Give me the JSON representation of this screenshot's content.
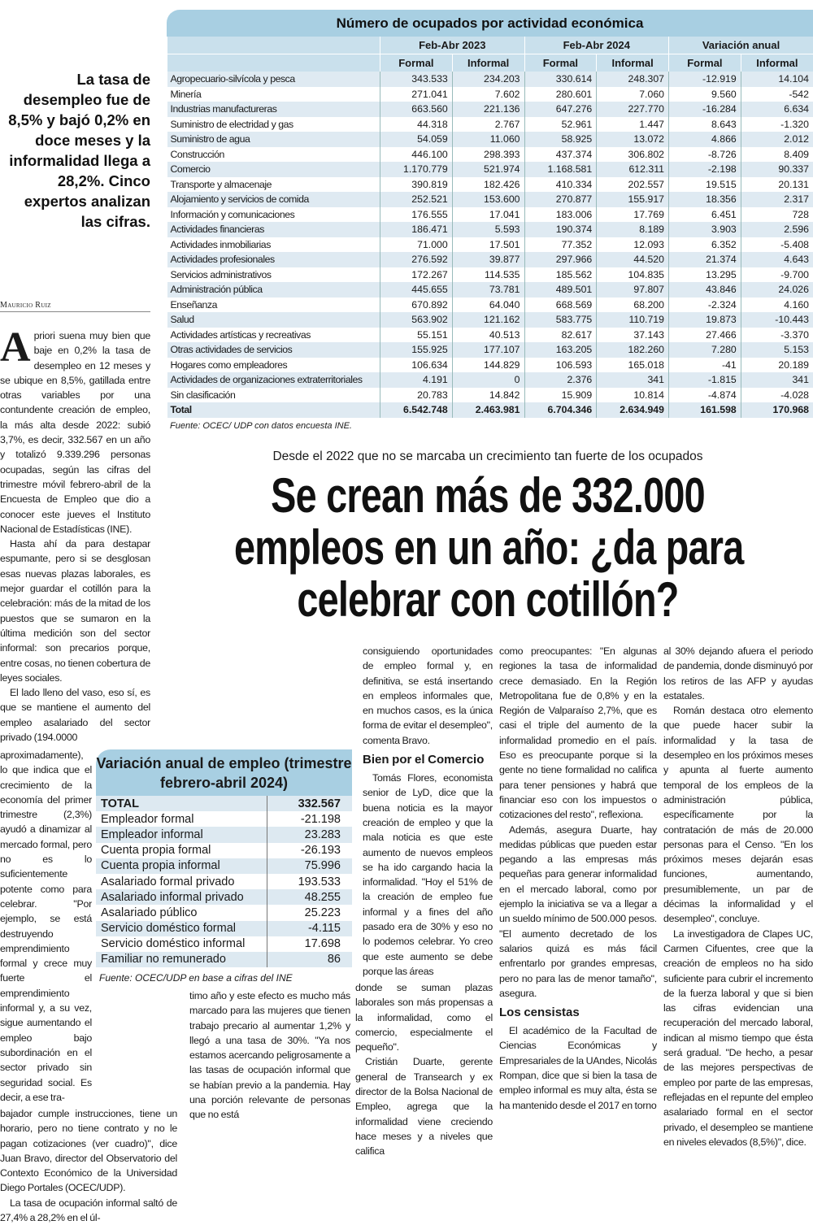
{
  "table1": {
    "title": "Número de ocupados por actividad económica",
    "groups": [
      "Feb-Abr 2023",
      "Feb-Abr 2024",
      "Variación anual"
    ],
    "subheaders": [
      "Formal",
      "Informal",
      "Formal",
      "Informal",
      "Formal",
      "Informal"
    ],
    "rows": [
      [
        "Agropecuario-silvícola y pesca",
        "343.533",
        "234.203",
        "330.614",
        "248.307",
        "-12.919",
        "14.104"
      ],
      [
        "Minería",
        "271.041",
        "7.602",
        "280.601",
        "7.060",
        "9.560",
        "-542"
      ],
      [
        "Industrias manufactureras",
        "663.560",
        "221.136",
        "647.276",
        "227.770",
        "-16.284",
        "6.634"
      ],
      [
        "Suministro de electridad y gas",
        "44.318",
        "2.767",
        "52.961",
        "1.447",
        "8.643",
        "-1.320"
      ],
      [
        "Suministro de agua",
        "54.059",
        "11.060",
        "58.925",
        "13.072",
        "4.866",
        "2.012"
      ],
      [
        "Construcción",
        "446.100",
        "298.393",
        "437.374",
        "306.802",
        "-8.726",
        "8.409"
      ],
      [
        "Comercio",
        "1.170.779",
        "521.974",
        "1.168.581",
        "612.311",
        "-2.198",
        "90.337"
      ],
      [
        "Transporte y almacenaje",
        "390.819",
        "182.426",
        "410.334",
        "202.557",
        "19.515",
        "20.131"
      ],
      [
        "Alojamiento y servicios de comida",
        "252.521",
        "153.600",
        "270.877",
        "155.917",
        "18.356",
        "2.317"
      ],
      [
        "Información y comunicaciones",
        "176.555",
        "17.041",
        "183.006",
        "17.769",
        "6.451",
        "728"
      ],
      [
        "Actividades financieras",
        "186.471",
        "5.593",
        "190.374",
        "8.189",
        "3.903",
        "2.596"
      ],
      [
        "Actividades inmobiliarias",
        "71.000",
        "17.501",
        "77.352",
        "12.093",
        "6.352",
        "-5.408"
      ],
      [
        "Actividades profesionales",
        "276.592",
        "39.877",
        "297.966",
        "44.520",
        "21.374",
        "4.643"
      ],
      [
        "Servicios administrativos",
        "172.267",
        "114.535",
        "185.562",
        "104.835",
        "13.295",
        "-9.700"
      ],
      [
        "Administración pública",
        "445.655",
        "73.781",
        "489.501",
        "97.807",
        "43.846",
        "24.026"
      ],
      [
        "Enseñanza",
        "670.892",
        "64.040",
        "668.569",
        "68.200",
        "-2.324",
        "4.160"
      ],
      [
        "Salud",
        "563.902",
        "121.162",
        "583.775",
        "110.719",
        "19.873",
        "-10.443"
      ],
      [
        "Actividades artísticas y recreativas",
        "55.151",
        "40.513",
        "82.617",
        "37.143",
        "27.466",
        "-3.370"
      ],
      [
        "Otras actividades de servicios",
        "155.925",
        "177.107",
        "163.205",
        "182.260",
        "7.280",
        "5.153"
      ],
      [
        "Hogares como empleadores",
        "106.634",
        "144.829",
        "106.593",
        "165.018",
        "-41",
        "20.189"
      ],
      [
        "Actividades de organizaciones extraterritoriales",
        "4.191",
        "0",
        "2.376",
        "341",
        "-1.815",
        "341"
      ],
      [
        "Sin clasificación",
        "20.783",
        "14.842",
        "15.909",
        "10.814",
        "-4.874",
        "-4.028"
      ]
    ],
    "total": [
      "Total",
      "6.542.748",
      "2.463.981",
      "6.704.346",
      "2.634.949",
      "161.598",
      "170.968"
    ],
    "source": "Fuente: OCEC/ UDP con datos encuesta INE."
  },
  "deck": "La tasa de desempleo fue de 8,5% y bajó 0,2% en doce meses y la informalidad llega a 28,2%. Cinco expertos analizan las cifras.",
  "byline": "Mauricio Ruiz",
  "kicker": "Desde el 2022 que no se marcaba un crecimiento tan fuerte de los ocupados",
  "headline": [
    "Se crean más de 332.000",
    "empleos en  un año: ¿da para",
    "celebrar con cotillón?"
  ],
  "table2": {
    "title": "Variación anual de empleo (trimestre febrero-abril 2024)",
    "total": [
      "TOTAL",
      "332.567"
    ],
    "rows": [
      [
        "Empleador formal",
        "-21.198"
      ],
      [
        "Empleador informal",
        "23.283"
      ],
      [
        "Cuenta propia formal",
        "-26.193"
      ],
      [
        "Cuenta propia informal",
        "75.996"
      ],
      [
        "Asalariado formal privado",
        "193.533"
      ],
      [
        "Asalariado informal privado",
        "48.255"
      ],
      [
        "Asalariado público",
        "25.223"
      ],
      [
        "Servicio doméstico formal",
        "-4.115"
      ],
      [
        "Servicio doméstico informal",
        "17.698"
      ],
      [
        "Familiar no remunerado",
        "86"
      ]
    ],
    "source": "Fuente: OCEC/UDP en base a cifras del INE"
  },
  "article": {
    "drop_cap": "A",
    "col1a_p1": "priori suena muy bien que baje en 0,2% la tasa de desempleo en 12 meses y se ubique en 8,5%, gatillada entre otras variables por una contundente creación de empleo, la más alta desde 2022: subió 3,7%, es decir, 332.567 en un año y totalizó 9.339.296 personas ocupadas, según las cifras del trimestre móvil febrero-abril de la Encuesta de Empleo que dio a conocer este jueves el Instituto Nacional de Estadísticas (INE).",
    "col1a_p2": "Hasta ahí da para destapar espumante, pero si se desglosan esas nuevas plazas laborales, es mejor guardar el cotillón para la celebración: más de la mitad de los puestos que se sumaron en la última medición son del sector informal: son precarios porque, entre cosas, no tienen cobertura de leyes sociales.",
    "col1a_p3": "El lado lleno del vaso, eso sí, es que se mantiene el aumento del empleo asalariado del sector privado (194.0000",
    "col1b": "aproximadamente), lo que indica que el crecimiento de la economía del primer trimestre (2,3%) ayudó a dinamizar al mercado formal, pero no es lo suficientemente potente como para celebrar. \"Por ejemplo, se está destruyendo emprendimiento formal y crece muy fuerte el emprendimiento informal y, a su vez, sigue aumentando el empleo bajo subordinación en el sector privado sin seguridad social. Es decir, a ese tra-",
    "col1c_p1": "bajador cumple instrucciones, tiene un horario, pero no tiene contrato y no le pagan cotizaciones (ver cuadro)\", dice Juan Bravo, director del Observatorio del Contexto Económico de la Universidad Diego Portales (OCEC/UDP).",
    "col1c_p2": "La tasa de ocupación informal saltó de 27,4% a 28,2% en el úl-",
    "col2": "timo año y este efecto es mucho más marcado para las mujeres que tienen trabajo precario al aumentar 1,2% y llegó a una tasa de 30%. \"Ya nos estamos acercando peligrosamente a las tasas de ocupación informal que se habían previo a la pandemia. Hay una porción relevante de personas que no está",
    "col3a": "consiguiendo oportunidades de empleo formal y, en definitiva, se está insertando en empleos informales que, en muchos casos, es la única forma de evitar el desempleo\", comenta Bravo.",
    "subhead1": "Bien por el Comercio",
    "col3b": "Tomás Flores, economista senior de LyD, dice que la buena noticia es la mayor creación de empleo y que la mala noticia es que este aumento de nuevos empleos se ha ido cargando hacia la informalidad. \"Hoy el 51% de la creación de empleo fue informal y a fines del año pasado era de 30% y eso no lo podemos celebrar. Yo creo que este aumento se debe porque las áreas",
    "col3c_p1": "donde se suman plazas laborales son más propensas a la informalidad, como el comercio, especialmente el pequeño\".",
    "col3c_p2": "Cristián Duarte, gerente general de Transearch y ex director de la Bolsa Nacional de Empleo, agrega que la informalidad viene creciendo hace meses y a niveles que califica",
    "col4_p1": "como preocupantes: \"En algunas regiones la tasa de informalidad crece demasiado. En la Región Metropolitana fue de 0,8% y en la Región de Valparaíso 2,7%, que es casi el triple del aumento de la informalidad promedio en el país. Eso es preocupante porque si la gente no tiene formalidad no califica para tener pensiones y habrá que financiar eso con los impuestos o cotizaciones del resto\", reflexiona.",
    "col4_p2": "Además, asegura Duarte, hay medidas públicas que pueden estar pegando a las empresas más pequeñas para generar informalidad en el mercado laboral, como por ejemplo la iniciativa se va a llegar a un sueldo mínimo de 500.000 pesos. \"El aumento decretado de los salarios quizá es más fácil enfrentarlo por grandes empresas, pero no para las de menor tamaño\", asegura.",
    "subhead2": "Los censistas",
    "col4_p3": "El académico de la Facultad de Ciencias Económicas y Empresariales de la UAndes, Nicolás Rompan, dice que si bien la tasa de empleo informal es muy alta, ésta se ha mantenido desde el 2017 en torno",
    "col5_p1": "al 30% dejando afuera el periodo de pandemia, donde disminuyó por los retiros de las AFP y ayudas estatales.",
    "col5_p2": "Román destaca otro elemento que puede hacer subir la informalidad y la tasa de desempleo en los próximos meses y apunta al fuerte aumento temporal de los empleos de la administración pública, específicamente por la contratación de más de 20.000 personas para el Censo. \"En los próximos meses dejarán esas funciones, aumentando, presumiblemente, un par de décimas la informalidad y el desempleo\", concluye.",
    "col5_p3": "La investigadora de Clapes UC, Carmen Cifuentes, cree que la creación de empleos no ha sido suficiente para cubrir el incremento de la fuerza laboral y que si bien las cifras evidencian una recuperación del mercado laboral, indican al mismo tiempo que ésta será gradual. \"De hecho, a pesar de las mejores perspectivas de empleo por parte de las empresas, reflejadas en el repunte del empleo asalariado formal en el sector privado, el desempleo se mantiene en niveles elevados (8,5%)\", dice."
  },
  "colors": {
    "accent_blue": "#a8cfe2",
    "row_stripe": "#dfeaf2"
  }
}
